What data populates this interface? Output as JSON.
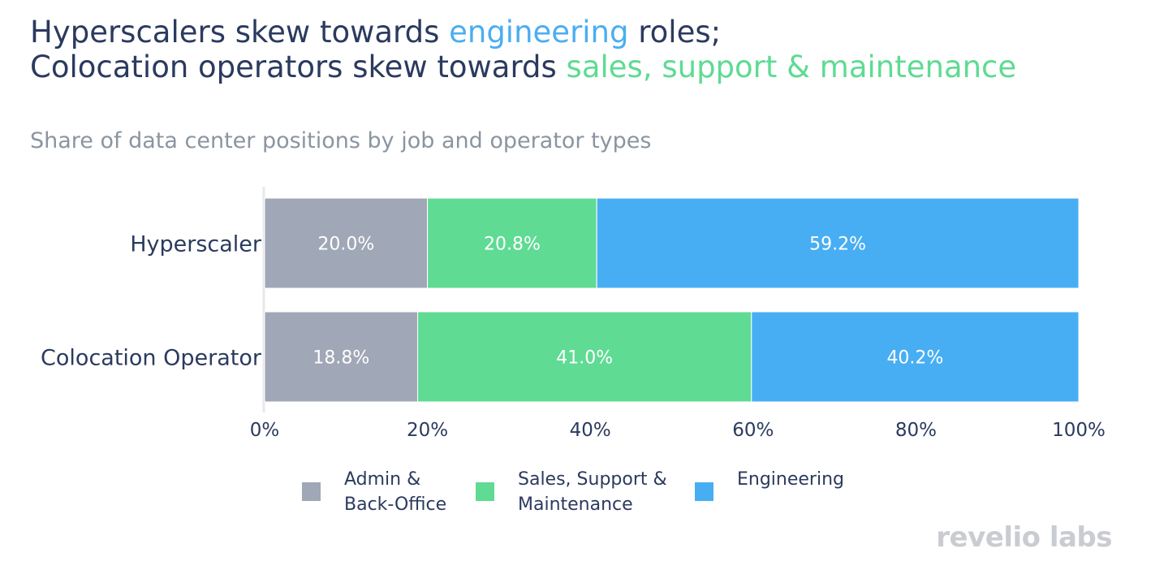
{
  "title": {
    "line1_part1": "Hyperscalers skew towards ",
    "line1_highlight": "engineering",
    "line1_part2": " roles;",
    "line2_part1": "Colocation operators skew towards ",
    "line2_highlight": "sales, support & maintenance"
  },
  "subtitle": "Share of data center positions by job and operator types",
  "brand": "revelio labs",
  "colors": {
    "admin": "#a0a7b6",
    "sales": "#5fdb93",
    "engineering": "#48aef3",
    "title": "#2b3a5e",
    "highlight_engineering": "#4aaef2",
    "highlight_sales": "#5edb92"
  },
  "legend": [
    {
      "key": "admin",
      "label_line1": "Admin &",
      "label_line2": "Back-Office",
      "color": "#a0a7b6"
    },
    {
      "key": "sales",
      "label_line1": "Sales, Support &",
      "label_line2": "Maintenance",
      "color": "#5fdb93"
    },
    {
      "key": "engineering",
      "label_line1": "Engineering",
      "label_line2": "",
      "color": "#48aef3"
    }
  ],
  "chart_data": {
    "type": "bar",
    "orientation": "horizontal",
    "stacked": true,
    "categories": [
      "Hyperscaler",
      "Colocation Operator"
    ],
    "series": [
      {
        "name": "Admin & Back-Office",
        "color": "#a0a7b6",
        "values": [
          20.0,
          18.8
        ],
        "labels": [
          "20.0%",
          "18.8%"
        ]
      },
      {
        "name": "Sales, Support & Maintenance",
        "color": "#5fdb93",
        "values": [
          20.8,
          41.0
        ],
        "labels": [
          "20.8%",
          "41.0%"
        ]
      },
      {
        "name": "Engineering",
        "color": "#48aef3",
        "values": [
          59.2,
          40.2
        ],
        "labels": [
          "59.2%",
          "40.2%"
        ]
      }
    ],
    "xlim": [
      0,
      100
    ],
    "xticks": [
      0,
      20,
      40,
      60,
      80,
      100
    ],
    "xtick_labels": [
      "0%",
      "20%",
      "40%",
      "60%",
      "80%",
      "100%"
    ],
    "title": "Share of data center positions by job and operator types",
    "xlabel": "",
    "ylabel": "",
    "grid": false,
    "legend_position": "bottom"
  }
}
